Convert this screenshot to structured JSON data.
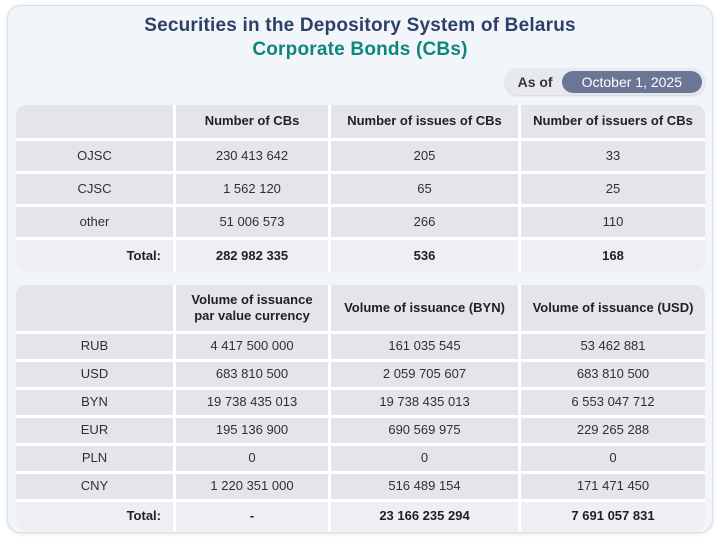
{
  "header": {
    "title_line1": "Securities in the Depository System of Belarus",
    "title_line2": "Corporate Bonds (CBs)",
    "as_of_label": "As of",
    "as_of_date": "October 1, 2025"
  },
  "colors": {
    "title_navy": "#2c4068",
    "title_teal": "#0f867d",
    "card_background": "#f2f6fb",
    "cell_gray": "#e3e5e9",
    "total_row_gray": "#edeff3",
    "date_pill": "#6b7697"
  },
  "chart_data": [
    {
      "type": "table",
      "title": "Corporate Bonds counts",
      "columns": [
        "",
        "Number of CBs",
        "Number of issues of CBs",
        "Number of issuers of CBs"
      ],
      "rows": [
        [
          "OJSC",
          "230 413 642",
          "205",
          "33"
        ],
        [
          "CJSC",
          "1 562 120",
          "65",
          "25"
        ],
        [
          "other",
          "51 006 573",
          "266",
          "110"
        ]
      ],
      "total": [
        "Total:",
        "282 982 335",
        "536",
        "168"
      ]
    },
    {
      "type": "table",
      "title": "Corporate Bonds volume of issuance",
      "columns": [
        "",
        "Volume of issuance par value currency",
        "Volume of issuance (BYN)",
        "Volume of issuance (USD)"
      ],
      "rows": [
        [
          "RUB",
          "4 417 500 000",
          "161 035 545",
          "53 462 881"
        ],
        [
          "USD",
          "683 810 500",
          "2 059 705 607",
          "683 810 500"
        ],
        [
          "BYN",
          "19 738 435 013",
          "19 738 435 013",
          "6 553 047 712"
        ],
        [
          "EUR",
          "195 136 900",
          "690 569 975",
          "229 265 288"
        ],
        [
          "PLN",
          "0",
          "0",
          "0"
        ],
        [
          "CNY",
          "1 220 351 000",
          "516 489 154",
          "171 471 450"
        ]
      ],
      "total": [
        "Total:",
        "-",
        "23 166 235 294",
        "7 691 057 831"
      ]
    }
  ]
}
